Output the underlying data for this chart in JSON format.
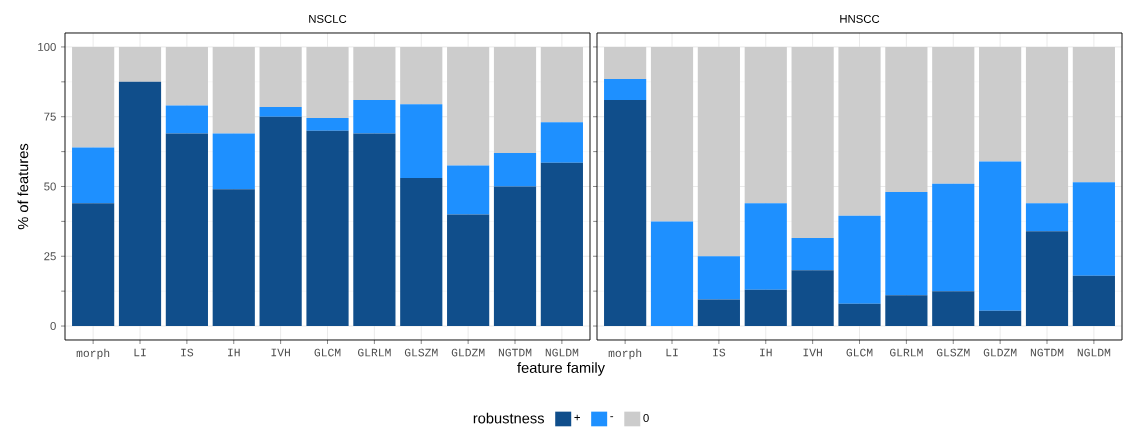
{
  "chart_data": [
    {
      "type": "bar",
      "stacked": true,
      "title": "NSCLC",
      "xlabel": "feature family",
      "ylabel": "% of features",
      "legend_title": "robustness",
      "legend": "bottom",
      "grid": true,
      "categories": [
        "morph",
        "LI",
        "IS",
        "IH",
        "IVH",
        "GLCM",
        "GLRLM",
        "GLSZM",
        "GLDZM",
        "NGTDM",
        "NGLDM"
      ],
      "ylim": [
        -5,
        105
      ],
      "yticks": [
        0,
        25,
        50,
        75,
        100
      ],
      "series": [
        {
          "name": "+",
          "color": "#104e8b",
          "values": [
            44,
            87.5,
            69,
            49,
            75,
            70,
            69,
            53,
            40,
            50,
            58.5
          ]
        },
        {
          "name": "-",
          "color": "#1e90ff",
          "values": [
            20,
            0,
            10,
            20,
            3.5,
            4.5,
            12,
            26.5,
            17.5,
            12,
            14.5
          ]
        },
        {
          "name": "0",
          "color": "#cccccc",
          "values": [
            36,
            12.5,
            21,
            31,
            21.5,
            25.5,
            19,
            20.5,
            42.5,
            38,
            27
          ]
        }
      ]
    },
    {
      "type": "bar",
      "stacked": true,
      "title": "HNSCC",
      "grid": true,
      "tick_labels": "x",
      "categories": [
        "morph",
        "LI",
        "IS",
        "IH",
        "IVH",
        "GLCM",
        "GLRLM",
        "GLSZM",
        "GLDZM",
        "NGTDM",
        "NGLDM"
      ],
      "ylim": [
        -5,
        105
      ],
      "yticks": [
        0,
        25,
        50,
        75,
        100
      ],
      "series": [
        {
          "color": "#104e8b",
          "values": [
            81,
            0,
            9.5,
            13,
            20,
            8,
            11,
            12.5,
            5.5,
            34,
            18
          ]
        },
        {
          "color": "#1e90ff",
          "values": [
            7.5,
            37.5,
            15.5,
            31,
            11.5,
            31.5,
            37,
            38.5,
            53.5,
            10,
            33.5
          ]
        },
        {
          "color": "#cccccc",
          "values": [
            11.5,
            62.5,
            75,
            56,
            68.5,
            60.5,
            52,
            49,
            41,
            56,
            48.5
          ]
        }
      ]
    }
  ]
}
